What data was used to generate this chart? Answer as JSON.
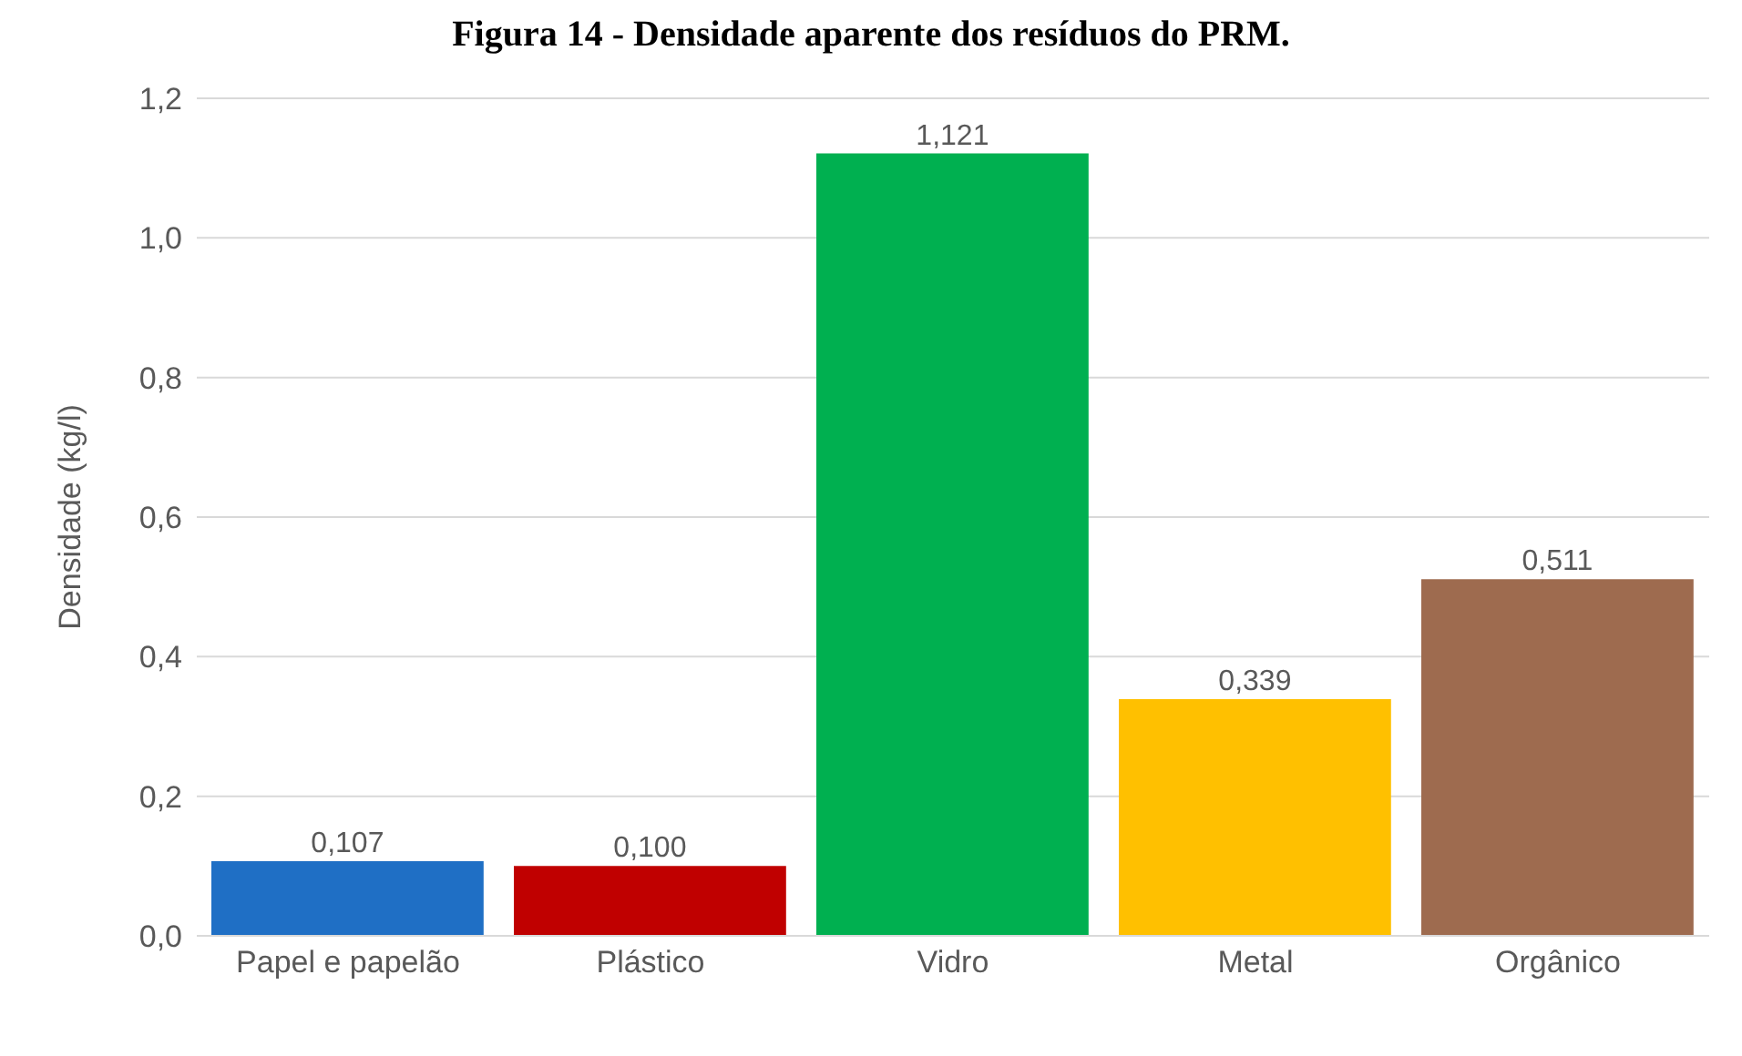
{
  "chart_data": {
    "type": "bar",
    "title": "Figura 14 - Densidade aparente dos resíduos do PRM.",
    "ylabel": "Densidade (kg/l)",
    "categories": [
      "Papel e papelão",
      "Plástico",
      "Vidro",
      "Metal",
      "Orgânico"
    ],
    "values": [
      0.107,
      0.1,
      1.121,
      0.339,
      0.511
    ],
    "colors": [
      "#1f6fc5",
      "#c00000",
      "#00b050",
      "#ffc000",
      "#9e6b4f"
    ],
    "ylim": [
      0,
      1.2
    ],
    "yticks": [
      {
        "value": 0,
        "label": "0,0"
      },
      {
        "value": 0.2,
        "label": "0,2"
      },
      {
        "value": 0.4,
        "label": "0,4"
      },
      {
        "value": 0.6,
        "label": "0,6"
      },
      {
        "value": 0.8,
        "label": "0,8"
      },
      {
        "value": 1,
        "label": "1,0"
      },
      {
        "value": 1.2,
        "label": "1,2"
      }
    ],
    "value_labels": [
      "0,107",
      "0,100",
      "1,121",
      "0,339",
      "0,511"
    ],
    "grid": "y"
  }
}
